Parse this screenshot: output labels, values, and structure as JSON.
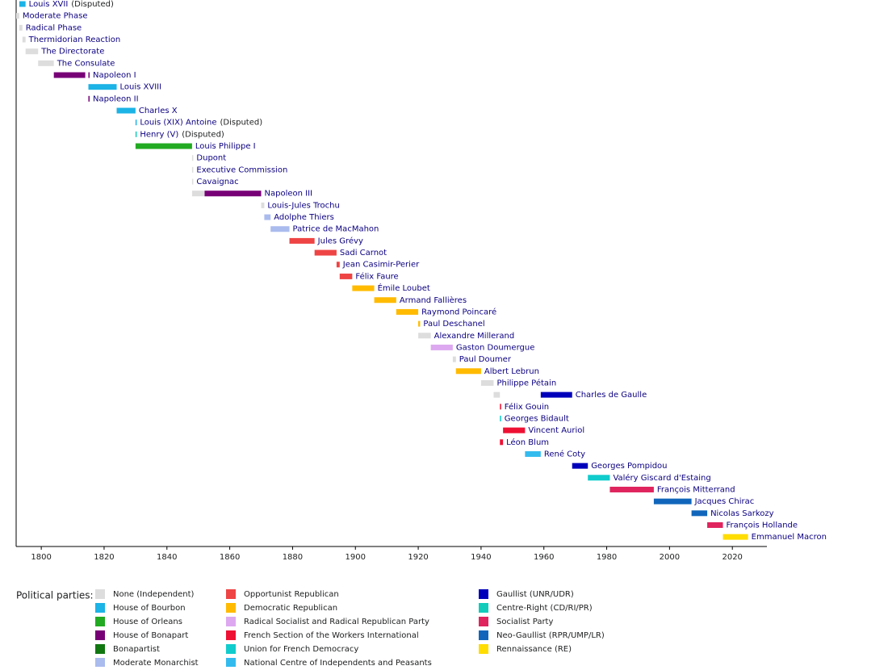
{
  "chart_data": {
    "type": "timeline",
    "xlim": [
      1792,
      2031
    ],
    "xticks": [
      1800,
      1820,
      1840,
      1860,
      1880,
      1900,
      1920,
      1940,
      1960,
      1980,
      2000,
      2020
    ],
    "rows": [
      {
        "name": "Louis XVII",
        "note": "(Disputed)",
        "segments": [
          {
            "start": 1793,
            "end": 1795,
            "color": "#1cb3e6"
          }
        ]
      },
      {
        "name": "Moderate Phase",
        "segments": [
          {
            "start": 1792,
            "end": 1793,
            "color": "#dddddd"
          }
        ]
      },
      {
        "name": "Radical Phase",
        "segments": [
          {
            "start": 1793,
            "end": 1794,
            "color": "#dddddd"
          }
        ]
      },
      {
        "name": "Thermidorian Reaction",
        "segments": [
          {
            "start": 1794,
            "end": 1795,
            "color": "#dddddd"
          }
        ]
      },
      {
        "name": "The Directorate",
        "segments": [
          {
            "start": 1795,
            "end": 1799,
            "color": "#dddddd"
          }
        ]
      },
      {
        "name": "The Consulate",
        "segments": [
          {
            "start": 1799,
            "end": 1804,
            "color": "#dddddd"
          }
        ]
      },
      {
        "name": "Napoleon I",
        "segments": [
          {
            "start": 1804,
            "end": 1814,
            "color": "#770077"
          },
          {
            "start": 1815,
            "end": 1815.3,
            "color": "#770077"
          }
        ]
      },
      {
        "name": "Louis XVIII",
        "segments": [
          {
            "start": 1815,
            "end": 1824,
            "color": "#1cb3e6"
          }
        ]
      },
      {
        "name": "Napoleon II",
        "segments": [
          {
            "start": 1815,
            "end": 1815.1,
            "color": "#770077"
          }
        ]
      },
      {
        "name": "Charles X",
        "segments": [
          {
            "start": 1824,
            "end": 1830,
            "color": "#1cb3e6"
          }
        ]
      },
      {
        "name": "Louis (XIX) Antoine",
        "note": "(Disputed)",
        "segments": [
          {
            "start": 1830,
            "end": 1830.1,
            "color": "#1cb3e6"
          }
        ]
      },
      {
        "name": "Henry (V)",
        "note": "(Disputed)",
        "segments": [
          {
            "start": 1830,
            "end": 1830.1,
            "color": "#11ccbb"
          }
        ]
      },
      {
        "name": "Louis Philippe I",
        "segments": [
          {
            "start": 1830,
            "end": 1848,
            "color": "#22aa22"
          }
        ]
      },
      {
        "name": "Dupont",
        "segments": [
          {
            "start": 1848,
            "end": 1848.2,
            "color": "#dddddd"
          }
        ]
      },
      {
        "name": "Executive Commission",
        "segments": [
          {
            "start": 1848,
            "end": 1848.2,
            "color": "#dddddd"
          }
        ]
      },
      {
        "name": "Cavaignac",
        "segments": [
          {
            "start": 1848,
            "end": 1848.2,
            "color": "#dddddd"
          }
        ]
      },
      {
        "name": "Napoleon III",
        "segments": [
          {
            "start": 1848,
            "end": 1852,
            "color": "#dddddd"
          },
          {
            "start": 1852,
            "end": 1870,
            "color": "#770077"
          }
        ]
      },
      {
        "name": "Louis-Jules Trochu",
        "segments": [
          {
            "start": 1870,
            "end": 1871,
            "color": "#dddddd"
          }
        ]
      },
      {
        "name": "Adolphe Thiers",
        "segments": [
          {
            "start": 1871,
            "end": 1873,
            "color": "#aabbee"
          }
        ]
      },
      {
        "name": "Patrice de MacMahon",
        "segments": [
          {
            "start": 1873,
            "end": 1879,
            "color": "#aabbee"
          }
        ]
      },
      {
        "name": "Jules Grévy",
        "segments": [
          {
            "start": 1879,
            "end": 1887,
            "color": "#ee4444"
          }
        ]
      },
      {
        "name": "Sadi Carnot",
        "segments": [
          {
            "start": 1887,
            "end": 1894,
            "color": "#ee4444"
          }
        ]
      },
      {
        "name": "Jean Casimir-Perier",
        "segments": [
          {
            "start": 1894,
            "end": 1895,
            "color": "#ee4444"
          }
        ]
      },
      {
        "name": "Félix Faure",
        "segments": [
          {
            "start": 1895,
            "end": 1899,
            "color": "#ee4444"
          }
        ]
      },
      {
        "name": "Émile Loubet",
        "segments": [
          {
            "start": 1899,
            "end": 1906,
            "color": "#ffbb00"
          }
        ]
      },
      {
        "name": "Armand Fallières",
        "segments": [
          {
            "start": 1906,
            "end": 1913,
            "color": "#ffbb00"
          }
        ]
      },
      {
        "name": "Raymond Poincaré",
        "segments": [
          {
            "start": 1913,
            "end": 1920,
            "color": "#ffbb00"
          }
        ]
      },
      {
        "name": "Paul Deschanel",
        "segments": [
          {
            "start": 1920,
            "end": 1920.6,
            "color": "#ffbb00"
          }
        ]
      },
      {
        "name": "Alexandre Millerand",
        "segments": [
          {
            "start": 1920,
            "end": 1924,
            "color": "#dddddd"
          }
        ]
      },
      {
        "name": "Gaston Doumergue",
        "segments": [
          {
            "start": 1924,
            "end": 1931,
            "color": "#dda8f0"
          }
        ]
      },
      {
        "name": "Paul Doumer",
        "segments": [
          {
            "start": 1931,
            "end": 1932,
            "color": "#dddddd"
          }
        ]
      },
      {
        "name": "Albert Lebrun",
        "segments": [
          {
            "start": 1932,
            "end": 1940,
            "color": "#ffbb00"
          }
        ]
      },
      {
        "name": "Philippe Pétain",
        "segments": [
          {
            "start": 1940,
            "end": 1944,
            "color": "#dddddd"
          }
        ]
      },
      {
        "name": "Charles de Gaulle",
        "segments": [
          {
            "start": 1944,
            "end": 1946,
            "color": "#dddddd"
          },
          {
            "start": 1959,
            "end": 1969,
            "color": "#0000bb"
          }
        ]
      },
      {
        "name": "Félix Gouin",
        "segments": [
          {
            "start": 1946,
            "end": 1946.4,
            "color": "#ee1133"
          }
        ]
      },
      {
        "name": "Georges Bidault",
        "segments": [
          {
            "start": 1946,
            "end": 1946.4,
            "color": "#11cccc"
          }
        ]
      },
      {
        "name": "Vincent Auriol",
        "segments": [
          {
            "start": 1947,
            "end": 1954,
            "color": "#ee1133"
          }
        ]
      },
      {
        "name": "Léon Blum",
        "segments": [
          {
            "start": 1946,
            "end": 1947,
            "color": "#ee1133"
          }
        ]
      },
      {
        "name": "René Coty",
        "segments": [
          {
            "start": 1954,
            "end": 1959,
            "color": "#33bbee"
          }
        ]
      },
      {
        "name": "Georges Pompidou",
        "segments": [
          {
            "start": 1969,
            "end": 1974,
            "color": "#0000bb"
          }
        ]
      },
      {
        "name": "Valéry Giscard d'Estaing",
        "segments": [
          {
            "start": 1974,
            "end": 1981,
            "color": "#11cccc"
          }
        ]
      },
      {
        "name": "François Mitterrand",
        "segments": [
          {
            "start": 1981,
            "end": 1995,
            "color": "#e0245e"
          }
        ]
      },
      {
        "name": "Jacques Chirac",
        "segments": [
          {
            "start": 1995,
            "end": 2007,
            "color": "#1166bb"
          }
        ]
      },
      {
        "name": "Nicolas Sarkozy",
        "segments": [
          {
            "start": 2007,
            "end": 2012,
            "color": "#1166bb"
          }
        ]
      },
      {
        "name": "François Hollande",
        "segments": [
          {
            "start": 2012,
            "end": 2017,
            "color": "#e0245e"
          }
        ]
      },
      {
        "name": "Emmanuel Macron",
        "segments": [
          {
            "start": 2017,
            "end": 2025,
            "color": "#ffdd00"
          }
        ]
      }
    ],
    "legend_title": "Political parties:",
    "parties": [
      {
        "name": "None (Independent)",
        "color": "#dddddd"
      },
      {
        "name": "House of Bourbon",
        "color": "#1cb3e6"
      },
      {
        "name": "House of Orleans",
        "color": "#22aa22"
      },
      {
        "name": "House of Bonapart",
        "color": "#770077"
      },
      {
        "name": "Bonapartist",
        "color": "#117711"
      },
      {
        "name": "Moderate Monarchist",
        "color": "#aabbee"
      },
      {
        "name": "Opportunist Republican",
        "color": "#ee4444"
      },
      {
        "name": "Democratic Republican",
        "color": "#ffbb00"
      },
      {
        "name": "Radical Socialist and Radical Republican Party",
        "color": "#dda8f0"
      },
      {
        "name": "French Section of the Workers International",
        "color": "#ee1133"
      },
      {
        "name": "Union for French Democracy",
        "color": "#11cccc"
      },
      {
        "name": "National Centre of Independents and Peasants",
        "color": "#33bbee"
      },
      {
        "name": "Gaullist (UNR/UDR)",
        "color": "#0000bb"
      },
      {
        "name": "Centre-Right (CD/RI/PR)",
        "color": "#11ccbb"
      },
      {
        "name": "Socialist Party",
        "color": "#e0245e"
      },
      {
        "name": "Neo-Gaullist (RPR/UMP/LR)",
        "color": "#1166bb"
      },
      {
        "name": "Rennaissance (RE)",
        "color": "#ffdd00"
      }
    ]
  }
}
